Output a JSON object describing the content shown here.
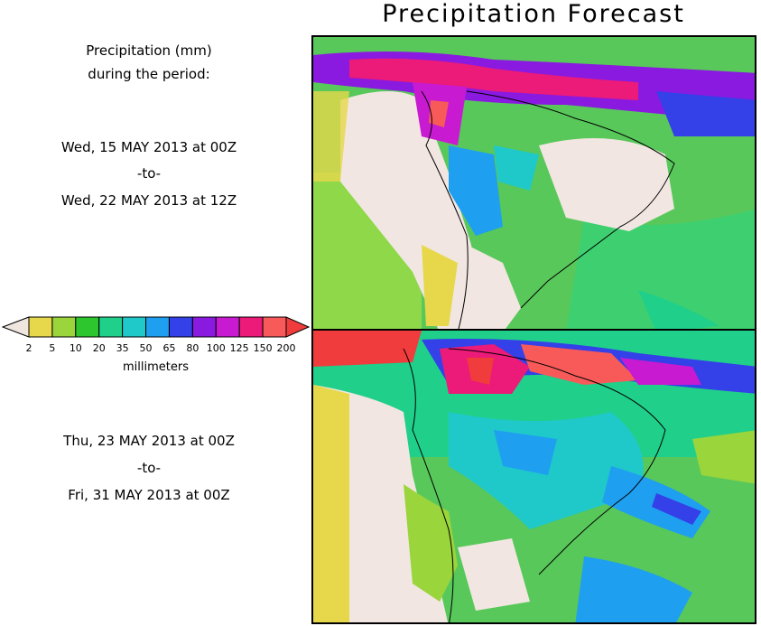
{
  "title": "Precipitation Forecast",
  "heading": {
    "line1": "Precipitation (mm)",
    "line2": "during the period:"
  },
  "period1": {
    "start": "Wed, 15 MAY 2013 at 00Z",
    "sep": "-to-",
    "end": "Wed, 22 MAY 2013 at 12Z"
  },
  "period2": {
    "start": "Thu, 23 MAY 2013 at 00Z",
    "sep": "-to-",
    "end": "Fri, 31 MAY 2013 at 00Z"
  },
  "legend": {
    "units": "millimeters",
    "ticks": [
      "2",
      "5",
      "10",
      "20",
      "35",
      "50",
      "65",
      "80",
      "100",
      "125",
      "150",
      "200"
    ],
    "colors": [
      "#e6d84a",
      "#9ad53c",
      "#2ec62e",
      "#1fcf8a",
      "#1fc9c9",
      "#1f9ff0",
      "#3440e8",
      "#8a1ae0",
      "#c81ad0",
      "#ec1a78",
      "#f85a5a"
    ],
    "below_color": "#f0e6e0",
    "above_color": "#f03c3c"
  },
  "map_colors": {
    "ocean_base": "#58c85a",
    "land_base": "#f2e6e2"
  }
}
